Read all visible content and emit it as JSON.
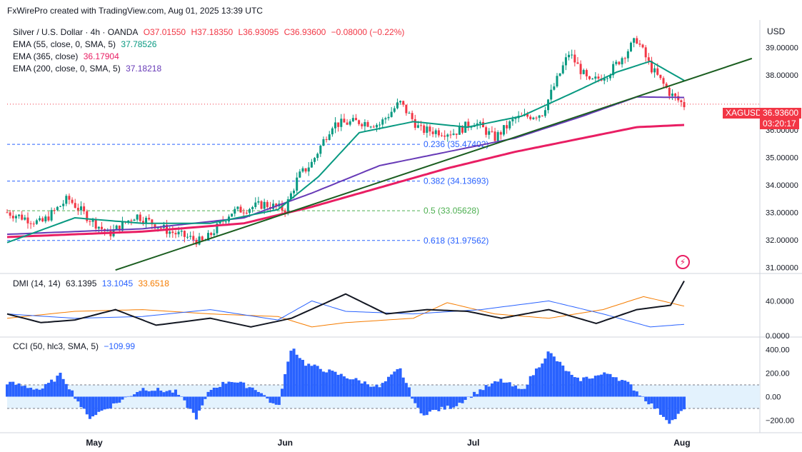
{
  "header": {
    "attribution": "FxWirePro created with TradingView.com, Aug 01, 2025 13:39 UTC"
  },
  "symbol_line": {
    "symbol": "Silver / U.S. Dollar · 4h · OANDA",
    "open": "O37.01550",
    "high": "H37.18350",
    "low": "L36.93095",
    "close": "C36.93600",
    "change": "−0.08000 (−0.22%)"
  },
  "indicators": [
    {
      "label": "EMA (55, close, 0, SMA, 5)",
      "value": "37.78526",
      "color": "#089981"
    },
    {
      "label": "EMA (365, close)",
      "value": "36.17904",
      "color": "#e91e63"
    },
    {
      "label": "EMA (200, close, 0, SMA, 5)",
      "value": "37.18218",
      "color": "#673ab7"
    }
  ],
  "dmi_legend": {
    "label": "DMI (14, 14)",
    "adx": "63.1395",
    "plus": "13.1045",
    "minus": "33.6518"
  },
  "cci_legend": {
    "label": "CCI (50, hlc3, SMA, 5)",
    "value": "−109.99"
  },
  "price_axis": {
    "currency": "USD",
    "ticks": [
      "39.00000",
      "38.00000",
      "36.00000",
      "35.00000",
      "34.00000",
      "33.00000",
      "32.00000",
      "31.00000"
    ],
    "symbol_badge": "XAGUSD",
    "last_price": "36.93600",
    "countdown": "03:20:17"
  },
  "dmi_axis": {
    "ticks": [
      "40.0000",
      "0.0000"
    ]
  },
  "cci_axis": {
    "ticks": [
      "400.00",
      "200.00",
      "0.00",
      "−200.00"
    ]
  },
  "time_axis": {
    "labels": [
      "May",
      "Jun",
      "Jul",
      "Aug"
    ]
  },
  "fibonacci": [
    {
      "label": "0.236 (35.47402)",
      "level": 35.47402
    },
    {
      "label": "0.382 (34.13693)",
      "level": 34.13693
    },
    {
      "label": "0.5 (33.05628)",
      "level": 33.05628
    },
    {
      "label": "0.618 (31.97562)",
      "level": 31.97562
    }
  ],
  "colors": {
    "up": "#089981",
    "down": "#f23645",
    "ema55": "#089981",
    "ema365": "#e91e63",
    "ema200": "#673ab7",
    "trend": "#1b5e20",
    "adx": "#131722",
    "diplus": "#2962ff",
    "diminus": "#f57c00",
    "cci": "#2962ff",
    "cci_band": "#e3f2fd"
  },
  "chart_data": {
    "type": "line",
    "title": "Silver / U.S. Dollar · 4h · OANDA",
    "ylim": [
      30.8,
      40.0
    ],
    "price_key_points": [
      {
        "t": 0,
        "v": 33.0
      },
      {
        "t": 0.05,
        "v": 32.6
      },
      {
        "t": 0.09,
        "v": 33.5
      },
      {
        "t": 0.12,
        "v": 32.8
      },
      {
        "t": 0.15,
        "v": 32.2
      },
      {
        "t": 0.19,
        "v": 32.9
      },
      {
        "t": 0.24,
        "v": 32.3
      },
      {
        "t": 0.29,
        "v": 31.9
      },
      {
        "t": 0.33,
        "v": 33.0
      },
      {
        "t": 0.38,
        "v": 33.3
      },
      {
        "t": 0.41,
        "v": 33.1
      },
      {
        "t": 0.43,
        "v": 34.3
      },
      {
        "t": 0.45,
        "v": 34.8
      },
      {
        "t": 0.48,
        "v": 36.2
      },
      {
        "t": 0.52,
        "v": 36.3
      },
      {
        "t": 0.55,
        "v": 36.2
      },
      {
        "t": 0.58,
        "v": 37.0
      },
      {
        "t": 0.61,
        "v": 36.0
      },
      {
        "t": 0.66,
        "v": 35.9
      },
      {
        "t": 0.69,
        "v": 36.3
      },
      {
        "t": 0.72,
        "v": 35.7
      },
      {
        "t": 0.75,
        "v": 36.4
      },
      {
        "t": 0.79,
        "v": 36.6
      },
      {
        "t": 0.83,
        "v": 38.8
      },
      {
        "t": 0.86,
        "v": 37.7
      },
      {
        "t": 0.89,
        "v": 38.1
      },
      {
        "t": 0.93,
        "v": 39.3
      },
      {
        "t": 0.95,
        "v": 38.3
      },
      {
        "t": 0.98,
        "v": 37.3
      },
      {
        "t": 1.0,
        "v": 36.9
      }
    ],
    "ema55_key_points": [
      {
        "t": 0,
        "v": 31.9
      },
      {
        "t": 0.1,
        "v": 32.8
      },
      {
        "t": 0.2,
        "v": 32.6
      },
      {
        "t": 0.3,
        "v": 32.6
      },
      {
        "t": 0.4,
        "v": 33.1
      },
      {
        "t": 0.46,
        "v": 34.3
      },
      {
        "t": 0.52,
        "v": 35.9
      },
      {
        "t": 0.6,
        "v": 36.3
      },
      {
        "t": 0.68,
        "v": 36.1
      },
      {
        "t": 0.76,
        "v": 36.5
      },
      {
        "t": 0.84,
        "v": 37.4
      },
      {
        "t": 0.9,
        "v": 38.1
      },
      {
        "t": 0.95,
        "v": 38.5
      },
      {
        "t": 1.0,
        "v": 37.8
      }
    ],
    "ema200_key_points": [
      {
        "t": 0,
        "v": 32.2
      },
      {
        "t": 0.2,
        "v": 32.4
      },
      {
        "t": 0.35,
        "v": 32.8
      },
      {
        "t": 0.45,
        "v": 33.7
      },
      {
        "t": 0.55,
        "v": 34.7
      },
      {
        "t": 0.65,
        "v": 35.2
      },
      {
        "t": 0.75,
        "v": 35.7
      },
      {
        "t": 0.85,
        "v": 36.5
      },
      {
        "t": 0.93,
        "v": 37.2
      },
      {
        "t": 1.0,
        "v": 37.18
      }
    ],
    "ema365_key_points": [
      {
        "t": 0,
        "v": 32.1
      },
      {
        "t": 0.2,
        "v": 32.3
      },
      {
        "t": 0.35,
        "v": 32.6
      },
      {
        "t": 0.45,
        "v": 33.2
      },
      {
        "t": 0.55,
        "v": 33.9
      },
      {
        "t": 0.65,
        "v": 34.6
      },
      {
        "t": 0.75,
        "v": 35.2
      },
      {
        "t": 0.85,
        "v": 35.7
      },
      {
        "t": 0.93,
        "v": 36.1
      },
      {
        "t": 1.0,
        "v": 36.18
      }
    ],
    "trendline": [
      {
        "t": 0.16,
        "v": 30.9
      },
      {
        "t": 1.1,
        "v": 38.6
      }
    ],
    "dmi_ylim": [
      0,
      70
    ],
    "dmi_adx": [
      {
        "t": 0,
        "v": 25
      },
      {
        "t": 0.05,
        "v": 15
      },
      {
        "t": 0.1,
        "v": 18
      },
      {
        "t": 0.16,
        "v": 30
      },
      {
        "t": 0.22,
        "v": 12
      },
      {
        "t": 0.3,
        "v": 20
      },
      {
        "t": 0.36,
        "v": 10
      },
      {
        "t": 0.42,
        "v": 20
      },
      {
        "t": 0.5,
        "v": 48
      },
      {
        "t": 0.56,
        "v": 25
      },
      {
        "t": 0.62,
        "v": 30
      },
      {
        "t": 0.68,
        "v": 28
      },
      {
        "t": 0.73,
        "v": 20
      },
      {
        "t": 0.8,
        "v": 30
      },
      {
        "t": 0.87,
        "v": 14
      },
      {
        "t": 0.93,
        "v": 30
      },
      {
        "t": 0.98,
        "v": 35
      },
      {
        "t": 1.0,
        "v": 63
      }
    ],
    "dmi_plus": [
      {
        "t": 0,
        "v": 25
      },
      {
        "t": 0.1,
        "v": 20
      },
      {
        "t": 0.2,
        "v": 22
      },
      {
        "t": 0.3,
        "v": 30
      },
      {
        "t": 0.4,
        "v": 18
      },
      {
        "t": 0.45,
        "v": 40
      },
      {
        "t": 0.5,
        "v": 28
      },
      {
        "t": 0.6,
        "v": 25
      },
      {
        "t": 0.7,
        "v": 30
      },
      {
        "t": 0.8,
        "v": 40
      },
      {
        "t": 0.88,
        "v": 25
      },
      {
        "t": 0.95,
        "v": 10
      },
      {
        "t": 1.0,
        "v": 13
      }
    ],
    "dmi_minus": [
      {
        "t": 0,
        "v": 20
      },
      {
        "t": 0.1,
        "v": 28
      },
      {
        "t": 0.2,
        "v": 30
      },
      {
        "t": 0.3,
        "v": 25
      },
      {
        "t": 0.4,
        "v": 22
      },
      {
        "t": 0.45,
        "v": 10
      },
      {
        "t": 0.5,
        "v": 15
      },
      {
        "t": 0.6,
        "v": 20
      },
      {
        "t": 0.65,
        "v": 38
      },
      {
        "t": 0.72,
        "v": 25
      },
      {
        "t": 0.8,
        "v": 20
      },
      {
        "t": 0.88,
        "v": 30
      },
      {
        "t": 0.94,
        "v": 45
      },
      {
        "t": 1.0,
        "v": 34
      }
    ],
    "cci_ylim": [
      -300,
      500
    ],
    "cci_band": [
      100,
      -100
    ],
    "cci_key_points": [
      {
        "t": 0,
        "v": 120
      },
      {
        "t": 0.05,
        "v": 60
      },
      {
        "t": 0.08,
        "v": 190
      },
      {
        "t": 0.12,
        "v": -180
      },
      {
        "t": 0.16,
        "v": -60
      },
      {
        "t": 0.2,
        "v": 70
      },
      {
        "t": 0.25,
        "v": 40
      },
      {
        "t": 0.28,
        "v": -180
      },
      {
        "t": 0.3,
        "v": 60
      },
      {
        "t": 0.33,
        "v": 140
      },
      {
        "t": 0.37,
        "v": 60
      },
      {
        "t": 0.4,
        "v": -100
      },
      {
        "t": 0.42,
        "v": 430
      },
      {
        "t": 0.44,
        "v": 280
      },
      {
        "t": 0.5,
        "v": 170
      },
      {
        "t": 0.55,
        "v": 80
      },
      {
        "t": 0.58,
        "v": 240
      },
      {
        "t": 0.61,
        "v": -150
      },
      {
        "t": 0.66,
        "v": -80
      },
      {
        "t": 0.7,
        "v": 60
      },
      {
        "t": 0.73,
        "v": 140
      },
      {
        "t": 0.76,
        "v": 50
      },
      {
        "t": 0.8,
        "v": 380
      },
      {
        "t": 0.84,
        "v": 140
      },
      {
        "t": 0.89,
        "v": 200
      },
      {
        "t": 0.92,
        "v": 100
      },
      {
        "t": 0.95,
        "v": -60
      },
      {
        "t": 0.98,
        "v": -220
      },
      {
        "t": 1.0,
        "v": -110
      }
    ]
  }
}
